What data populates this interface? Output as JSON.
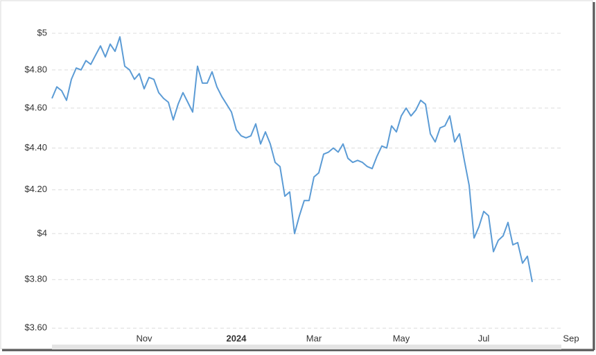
{
  "chart_data": {
    "type": "line",
    "y_scale": "log",
    "grid": true,
    "color": "#5b9bd5",
    "ylim": [
      3.54,
      5.07
    ],
    "yticks": [
      {
        "value": 3.6,
        "label": "$3.60"
      },
      {
        "value": 3.8,
        "label": "$3.80"
      },
      {
        "value": 4,
        "label": "$4"
      },
      {
        "value": 4.2,
        "label": "$4.20"
      },
      {
        "value": 4.4,
        "label": "$4.40"
      },
      {
        "value": 4.6,
        "label": "$4.60"
      },
      {
        "value": 4.8,
        "label": "$4.80"
      },
      {
        "value": 5,
        "label": "$5"
      }
    ],
    "categories": [
      null,
      null,
      null,
      null,
      null,
      null,
      null,
      null,
      null,
      null,
      null,
      null,
      null,
      null,
      null,
      null,
      null,
      null,
      null,
      "Nov",
      null,
      null,
      null,
      null,
      null,
      null,
      null,
      null,
      null,
      null,
      null,
      null,
      null,
      null,
      null,
      null,
      null,
      null,
      "2024",
      null,
      null,
      null,
      null,
      null,
      null,
      null,
      null,
      null,
      null,
      null,
      null,
      null,
      null,
      null,
      "Mar",
      null,
      null,
      null,
      null,
      null,
      null,
      null,
      null,
      null,
      null,
      null,
      null,
      null,
      null,
      null,
      null,
      null,
      "May",
      null,
      null,
      null,
      null,
      null,
      null,
      null,
      null,
      null,
      null,
      null,
      null,
      null,
      null,
      null,
      null,
      "Jul",
      null,
      null,
      null,
      null,
      null,
      null,
      null,
      null,
      null,
      null,
      null,
      null,
      null,
      null,
      null,
      null,
      null,
      "Sep"
    ],
    "values": [
      4.65,
      4.71,
      4.69,
      4.64,
      4.75,
      4.81,
      4.8,
      4.85,
      4.83,
      4.88,
      4.93,
      4.87,
      4.94,
      4.9,
      4.98,
      4.82,
      4.8,
      4.75,
      4.78,
      4.7,
      4.76,
      4.75,
      4.68,
      4.65,
      4.63,
      4.54,
      4.62,
      4.68,
      4.63,
      4.58,
      4.82,
      4.73,
      4.73,
      4.79,
      4.71,
      4.66,
      4.62,
      4.58,
      4.49,
      4.46,
      4.45,
      4.46,
      4.52,
      4.42,
      4.48,
      4.42,
      4.33,
      4.31,
      4.17,
      4.19,
      4.0,
      4.08,
      4.15,
      4.15,
      4.26,
      4.28,
      4.37,
      4.38,
      4.4,
      4.38,
      4.42,
      4.35,
      4.33,
      4.34,
      4.33,
      4.31,
      4.3,
      4.36,
      4.41,
      4.4,
      4.51,
      4.48,
      4.56,
      4.6,
      4.56,
      4.59,
      4.64,
      4.62,
      4.47,
      4.43,
      4.5,
      4.51,
      4.56,
      4.43,
      4.47,
      4.34,
      4.22,
      3.98,
      4.03,
      4.1,
      4.08,
      3.92,
      3.97,
      3.99,
      4.05,
      3.95,
      3.96,
      3.87,
      3.9,
      3.79,
      null,
      null,
      null,
      null,
      null,
      null,
      null,
      null
    ]
  }
}
